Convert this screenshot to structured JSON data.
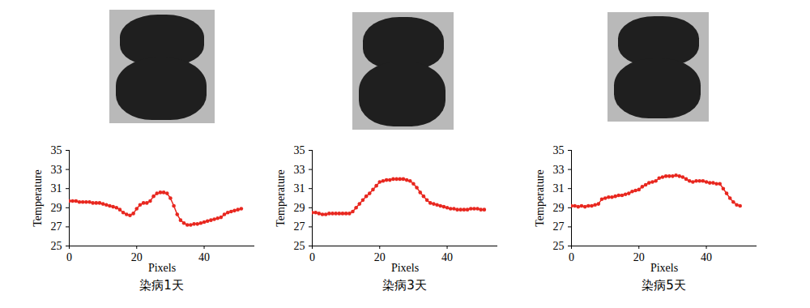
{
  "chart_data": [
    {
      "type": "line",
      "title": "染病1天",
      "x_label": "Pixels",
      "y_label": "Temperature",
      "color": "#e8271f",
      "marker": "circle",
      "line_style": "solid",
      "grid": false,
      "xlim": [
        0,
        55
      ],
      "xticks": [
        0,
        20,
        40
      ],
      "ylim": [
        25,
        35
      ],
      "yticks": [
        25,
        27,
        29,
        31,
        33,
        35
      ],
      "x": [
        0,
        1,
        2,
        3,
        4,
        5,
        6,
        7,
        8,
        9,
        10,
        11,
        12,
        13,
        14,
        15,
        16,
        17,
        18,
        19,
        20,
        21,
        22,
        23,
        24,
        25,
        26,
        27,
        28,
        29,
        30,
        31,
        32,
        33,
        34,
        35,
        36,
        37,
        38,
        39,
        40,
        41,
        42,
        43,
        44,
        45,
        46,
        47,
        48,
        49,
        50,
        51
      ],
      "values": [
        29.7,
        29.7,
        29.7,
        29.6,
        29.6,
        29.6,
        29.6,
        29.5,
        29.5,
        29.5,
        29.4,
        29.3,
        29.2,
        29.1,
        29.0,
        28.8,
        28.5,
        28.3,
        28.2,
        28.4,
        28.9,
        29.3,
        29.5,
        29.5,
        29.7,
        30.2,
        30.5,
        30.6,
        30.6,
        30.5,
        30.0,
        29.2,
        28.3,
        27.7,
        27.4,
        27.2,
        27.2,
        27.3,
        27.3,
        27.4,
        27.5,
        27.6,
        27.7,
        27.8,
        27.9,
        28.0,
        28.3,
        28.5,
        28.6,
        28.7,
        28.8,
        28.9
      ]
    },
    {
      "type": "line",
      "title": "染病3天",
      "x_label": "Pixels",
      "y_label": "Temperature",
      "color": "#e8271f",
      "marker": "circle",
      "line_style": "solid",
      "grid": false,
      "xlim": [
        0,
        55
      ],
      "xticks": [
        0,
        20,
        40
      ],
      "ylim": [
        25,
        35
      ],
      "yticks": [
        25,
        27,
        29,
        31,
        33,
        35
      ],
      "x": [
        0,
        1,
        2,
        3,
        4,
        5,
        6,
        7,
        8,
        9,
        10,
        11,
        12,
        13,
        14,
        15,
        16,
        17,
        18,
        19,
        20,
        21,
        22,
        23,
        24,
        25,
        26,
        27,
        28,
        29,
        30,
        31,
        32,
        33,
        34,
        35,
        36,
        37,
        38,
        39,
        40,
        41,
        42,
        43,
        44,
        45,
        46,
        47,
        48,
        49,
        50,
        51
      ],
      "values": [
        28.5,
        28.5,
        28.4,
        28.3,
        28.3,
        28.4,
        28.4,
        28.4,
        28.4,
        28.4,
        28.4,
        28.4,
        28.6,
        29.0,
        29.4,
        29.8,
        30.2,
        30.5,
        30.9,
        31.3,
        31.7,
        31.8,
        31.9,
        31.9,
        32.0,
        32.0,
        32.0,
        32.0,
        31.9,
        31.8,
        31.5,
        31.1,
        30.6,
        30.2,
        29.8,
        29.5,
        29.4,
        29.3,
        29.2,
        29.1,
        29.0,
        28.9,
        28.9,
        28.8,
        28.8,
        28.8,
        28.8,
        28.9,
        28.9,
        28.9,
        28.8,
        28.8
      ]
    },
    {
      "type": "line",
      "title": "染病5天",
      "x_label": "Pixels",
      "y_label": "Temperature",
      "color": "#e8271f",
      "marker": "circle",
      "line_style": "solid",
      "grid": false,
      "xlim": [
        0,
        55
      ],
      "xticks": [
        0,
        20,
        40
      ],
      "ylim": [
        25,
        35
      ],
      "yticks": [
        25,
        27,
        29,
        31,
        33,
        35
      ],
      "x": [
        0,
        1,
        2,
        3,
        4,
        5,
        6,
        7,
        8,
        9,
        10,
        11,
        12,
        13,
        14,
        15,
        16,
        17,
        18,
        19,
        20,
        21,
        22,
        23,
        24,
        25,
        26,
        27,
        28,
        29,
        30,
        31,
        32,
        33,
        34,
        35,
        36,
        37,
        38,
        39,
        40,
        41,
        42,
        43,
        44,
        45,
        46,
        47,
        48,
        49,
        50
      ],
      "values": [
        29.2,
        29.2,
        29.1,
        29.2,
        29.1,
        29.2,
        29.2,
        29.3,
        29.4,
        29.9,
        30.0,
        30.1,
        30.1,
        30.2,
        30.3,
        30.3,
        30.4,
        30.5,
        30.7,
        30.8,
        30.9,
        31.2,
        31.4,
        31.6,
        31.7,
        31.8,
        32.1,
        32.2,
        32.3,
        32.3,
        32.3,
        32.4,
        32.3,
        32.2,
        32.0,
        31.8,
        31.7,
        31.8,
        31.8,
        31.8,
        31.7,
        31.6,
        31.6,
        31.5,
        31.5,
        31.0,
        30.5,
        30.0,
        29.6,
        29.3,
        29.2
      ]
    }
  ]
}
